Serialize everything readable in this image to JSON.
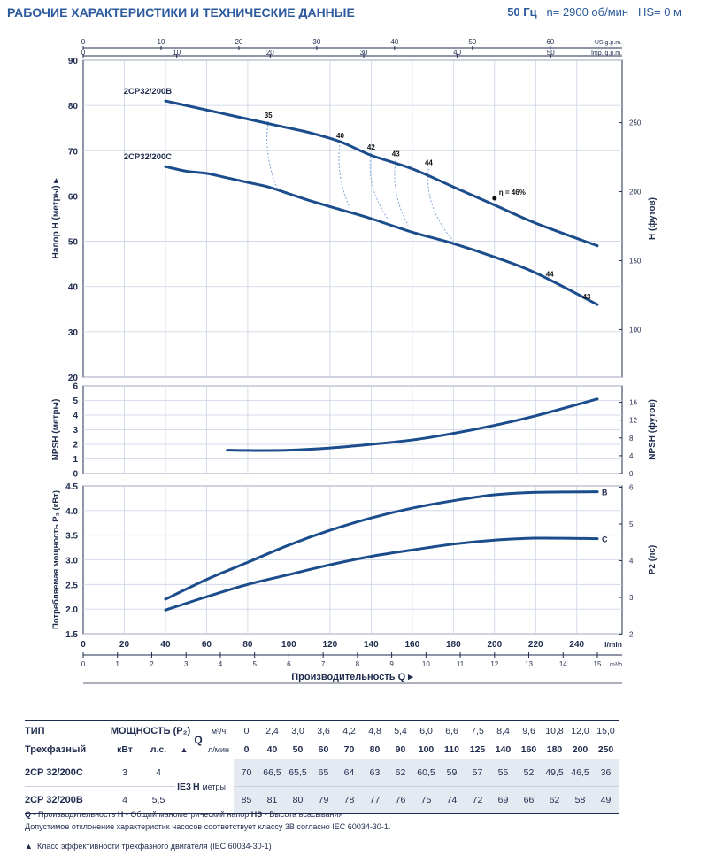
{
  "header": {
    "title": "РАБОЧИЕ ХАРАКТЕРИСТИКИ И ТЕХНИЧЕСКИЕ ДАННЫЕ",
    "freq": "50 Гц",
    "speed": "n= 2900 об/мин",
    "hs": "HS= 0 м"
  },
  "chart_data": [
    {
      "type": "line",
      "title": "Head curves",
      "ylabel": "Напор H (метры)",
      "y2label": "H (футов)",
      "xlim": [
        0,
        250
      ],
      "ylim": [
        20,
        90
      ],
      "yticks": [
        20,
        30,
        40,
        50,
        60,
        70,
        80,
        90
      ],
      "y2ticks": [
        100,
        150,
        200,
        250
      ],
      "top_axis_us": {
        "label": "US g.p.m.",
        "ticks": [
          0,
          10,
          20,
          30,
          40,
          50,
          60
        ]
      },
      "top_axis_imp": {
        "label": "Imp. g.p.m.",
        "ticks": [
          0,
          10,
          20,
          30,
          40,
          50
        ]
      },
      "series": [
        {
          "name": "2CP32/200B",
          "x": [
            40,
            50,
            60,
            70,
            80,
            90,
            100,
            110,
            125,
            140,
            160,
            180,
            200,
            220,
            250
          ],
          "y": [
            81,
            80,
            79,
            78,
            77,
            76,
            75,
            74,
            72,
            69,
            66,
            62,
            58,
            54,
            49
          ]
        },
        {
          "name": "2CP32/200C",
          "x": [
            40,
            50,
            60,
            70,
            80,
            90,
            100,
            110,
            125,
            140,
            160,
            180,
            200,
            220,
            250
          ],
          "y": [
            66.5,
            65.5,
            65,
            64,
            63,
            62,
            60.5,
            59,
            57,
            55,
            52,
            49.5,
            46.5,
            43,
            36
          ]
        }
      ],
      "efficiency_labels": [
        {
          "label": "35",
          "q": 90,
          "h": 76.5,
          "q2": 95,
          "h2": 61
        },
        {
          "label": "40",
          "q": 125,
          "h": 72,
          "q2": 130,
          "h2": 57
        },
        {
          "label": "42",
          "q": 140,
          "h": 69.5,
          "q2": 148,
          "h2": 55
        },
        {
          "label": "43",
          "q": 152,
          "h": 68,
          "q2": 158,
          "h2": 53.5
        },
        {
          "label": "44",
          "q": 168,
          "h": 66,
          "q2": 180,
          "h2": 50
        },
        {
          "label": "44",
          "q": 232,
          "h": 41,
          "q2": 232,
          "h2": 41
        },
        {
          "label": "43",
          "q": 250,
          "h": 36,
          "q2": 250,
          "h2": 36
        }
      ],
      "eta_marker": {
        "label": "η = 46%",
        "q": 200,
        "h": 59.5
      }
    },
    {
      "type": "line",
      "title": "NPSH",
      "ylabel": "NPSH (метры)",
      "y2label": "NPSH (футов)",
      "xlim": [
        0,
        250
      ],
      "ylim": [
        0,
        6
      ],
      "yticks": [
        0,
        1,
        2,
        3,
        4,
        5,
        6
      ],
      "y2ticks": [
        0,
        4,
        8,
        12,
        16
      ],
      "series": [
        {
          "name": "NPSH",
          "x": [
            70,
            80,
            100,
            120,
            140,
            160,
            180,
            200,
            220,
            250
          ],
          "y": [
            1.6,
            1.58,
            1.6,
            1.75,
            2.0,
            2.3,
            2.75,
            3.3,
            3.95,
            5.1
          ]
        }
      ]
    },
    {
      "type": "line",
      "title": "Power",
      "ylabel": "Потребляемая мощность P₂ (кВт)",
      "y2label": "P2 (лс)",
      "xlim": [
        0,
        250
      ],
      "ylim": [
        1.5,
        4.5
      ],
      "yticks": [
        1.5,
        2.0,
        2.5,
        3.0,
        3.5,
        4.0,
        4.5
      ],
      "y2ticks": [
        2,
        3,
        4,
        5,
        6
      ],
      "series": [
        {
          "name": "B",
          "x": [
            40,
            60,
            80,
            100,
            120,
            140,
            160,
            180,
            200,
            220,
            250
          ],
          "y": [
            2.2,
            2.6,
            2.95,
            3.3,
            3.6,
            3.85,
            4.05,
            4.2,
            4.32,
            4.37,
            4.38
          ]
        },
        {
          "name": "C",
          "x": [
            40,
            60,
            80,
            100,
            120,
            140,
            160,
            180,
            200,
            220,
            250
          ],
          "y": [
            1.98,
            2.25,
            2.5,
            2.7,
            2.9,
            3.07,
            3.2,
            3.32,
            3.4,
            3.44,
            3.43
          ]
        }
      ],
      "x_axis_lmin": {
        "label": "l/min",
        "ticks": [
          0,
          20,
          40,
          60,
          80,
          100,
          120,
          140,
          160,
          180,
          200,
          220,
          240
        ]
      },
      "x_axis_m3h": {
        "label": "m³/h",
        "ticks": [
          0,
          1,
          2,
          3,
          4,
          5,
          6,
          7,
          8,
          9,
          10,
          11,
          12,
          13,
          14,
          15
        ]
      },
      "xlabel": "Производительность Q"
    }
  ],
  "table": {
    "type_label": "ТИП",
    "phase_label": "Трехфазный",
    "power_label": "МОЩНОСТЬ (P₂)",
    "kw_label": "кВт",
    "hp_label": "л.с.",
    "triangle": "▲",
    "q_label": "Q",
    "m3h_unit": "м³/ч",
    "lmin_unit": "л/мин",
    "ie_label": "IE3",
    "h_label": "H",
    "h_unit": "метры",
    "q_m3h": [
      "0",
      "2,4",
      "3,0",
      "3,6",
      "4,2",
      "4,8",
      "5,4",
      "6,0",
      "6,6",
      "7,5",
      "8,4",
      "9,6",
      "10,8",
      "12,0",
      "15,0"
    ],
    "q_lmin": [
      "0",
      "40",
      "50",
      "60",
      "70",
      "80",
      "90",
      "100",
      "110",
      "125",
      "140",
      "160",
      "180",
      "200",
      "250"
    ],
    "rows": [
      {
        "name": "2CP 32/200C",
        "kw": "3",
        "hp": "4",
        "h": [
          "70",
          "66,5",
          "65,5",
          "65",
          "64",
          "63",
          "62",
          "60,5",
          "59",
          "57",
          "55",
          "52",
          "49,5",
          "46,5",
          "36"
        ]
      },
      {
        "name": "2CP 32/200B",
        "kw": "4",
        "hp": "5,5",
        "h": [
          "85",
          "81",
          "80",
          "79",
          "78",
          "77",
          "76",
          "75",
          "74",
          "72",
          "69",
          "66",
          "62",
          "58",
          "49"
        ]
      }
    ]
  },
  "legend": {
    "line1_q": "Q",
    "line1_q_text": " - Производительность  ",
    "line1_h": "H",
    "line1_h_text": " - Общий манометрический напор  ",
    "line1_hs": "HS",
    "line1_hs_text": " - Высота всасывания",
    "line2": "Допустимое отклонение характеристик насосов соответствует классу 3B согласно IEC 60034-30-1.",
    "line3_icon": "▲",
    "line3": "Класс эффективности трехфазного двигателя (IEC 60034-30-1)"
  },
  "colors": {
    "curve": "#1b4c8c",
    "grid": "#c9d2e3",
    "frame": "#1f2b4d",
    "title": "#2b5a9e",
    "shade": "#e4e9f2",
    "dash": "#7fa6d6"
  }
}
